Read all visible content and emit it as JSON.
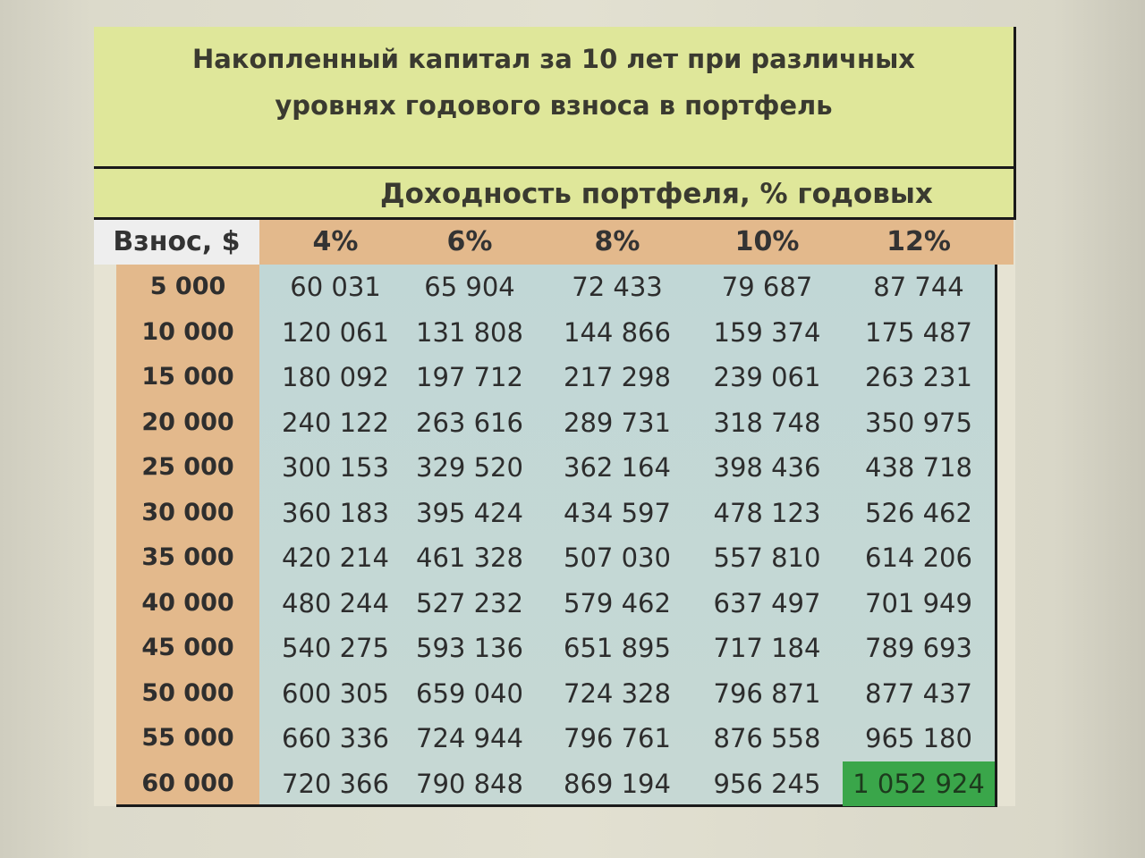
{
  "colors": {
    "title_bg": "#dfe79a",
    "header_bg": "#e3b98c",
    "body_bg": "#c1d7d6",
    "highlight": "#3aa64a"
  },
  "chart_data": {
    "type": "table",
    "title": "Накопленный капитал за 10 лет при различных\nуровнях годового взноса в портфель",
    "subtitle": "Доходность портфеля, % годовых",
    "row_header_label": "Взнос, $",
    "columns": [
      "4%",
      "6%",
      "8%",
      "10%",
      "12%"
    ],
    "rows": [
      {
        "label": "5 000",
        "values": [
          "60 031",
          "65 904",
          "72 433",
          "79 687",
          "87 744"
        ]
      },
      {
        "label": "10 000",
        "values": [
          "120 061",
          "131 808",
          "144 866",
          "159 374",
          "175 487"
        ]
      },
      {
        "label": "15 000",
        "values": [
          "180 092",
          "197 712",
          "217 298",
          "239 061",
          "263 231"
        ]
      },
      {
        "label": "20 000",
        "values": [
          "240 122",
          "263 616",
          "289 731",
          "318 748",
          "350 975"
        ]
      },
      {
        "label": "25 000",
        "values": [
          "300 153",
          "329 520",
          "362 164",
          "398 436",
          "438 718"
        ]
      },
      {
        "label": "30 000",
        "values": [
          "360 183",
          "395 424",
          "434 597",
          "478 123",
          "526 462"
        ]
      },
      {
        "label": "35 000",
        "values": [
          "420 214",
          "461 328",
          "507 030",
          "557 810",
          "614 206"
        ]
      },
      {
        "label": "40 000",
        "values": [
          "480 244",
          "527 232",
          "579 462",
          "637 497",
          "701 949"
        ]
      },
      {
        "label": "45 000",
        "values": [
          "540 275",
          "593 136",
          "651 895",
          "717 184",
          "789 693"
        ]
      },
      {
        "label": "50 000",
        "values": [
          "600 305",
          "659 040",
          "724 328",
          "796 871",
          "877 437"
        ]
      },
      {
        "label": "55 000",
        "values": [
          "660 336",
          "724 944",
          "796 761",
          "876 558",
          "965 180"
        ]
      },
      {
        "label": "60 000",
        "values": [
          "720 366",
          "790 848",
          "869 194",
          "956 245",
          "1 052 924"
        ]
      }
    ],
    "highlighted_cell": {
      "row": 11,
      "col": 4
    }
  }
}
